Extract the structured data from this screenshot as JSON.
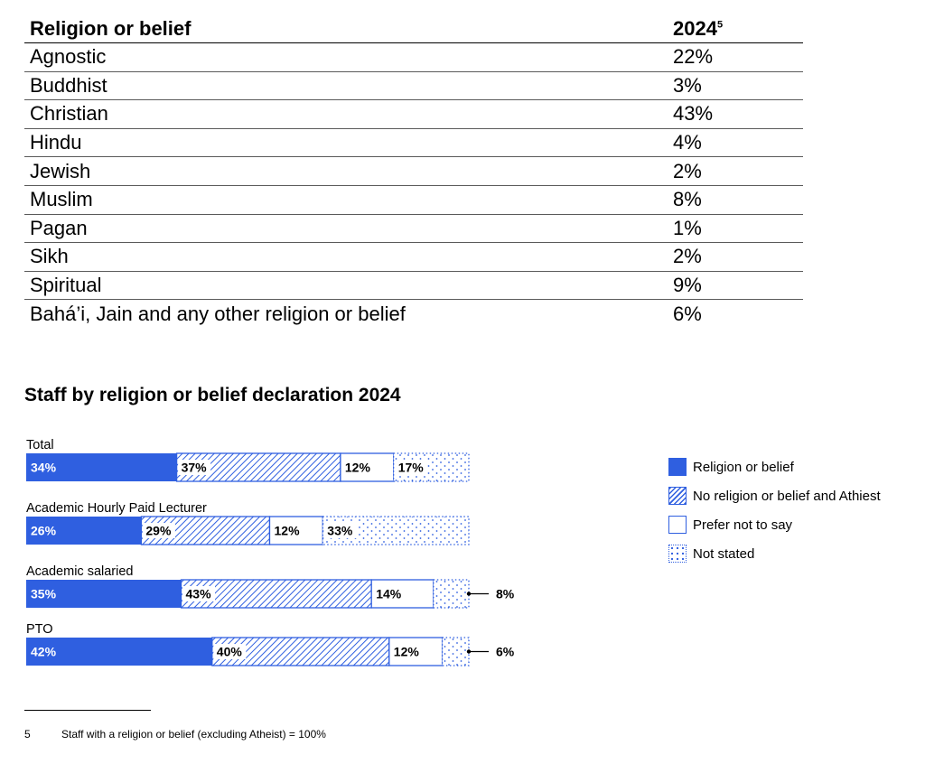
{
  "table": {
    "header": {
      "col1": "Religion or belief",
      "col2": "2024",
      "col2_sup": "5"
    },
    "rows": [
      {
        "label": "Agnostic",
        "value": "22%"
      },
      {
        "label": "Buddhist",
        "value": "3%"
      },
      {
        "label": "Christian",
        "value": "43%"
      },
      {
        "label": "Hindu",
        "value": "4%"
      },
      {
        "label": "Jewish",
        "value": "2%"
      },
      {
        "label": "Muslim",
        "value": "8%"
      },
      {
        "label": "Pagan",
        "value": "1%"
      },
      {
        "label": "Sikh",
        "value": "2%"
      },
      {
        "label": "Spiritual",
        "value": "9%"
      },
      {
        "label": "Bahá’i, Jain and any other religion or belief",
        "value": "6%"
      }
    ]
  },
  "chart_title": "Staff by religion or belief declaration 2024",
  "colors": {
    "blue": "#2f5fe0",
    "black": "#000000",
    "white": "#ffffff"
  },
  "chart_data": {
    "type": "bar",
    "orientation": "horizontal",
    "stacked": true,
    "title": "Staff by religion or belief declaration 2024",
    "unit": "%",
    "xlim": [
      0,
      100
    ],
    "categories": [
      "Total",
      "Academic Hourly Paid Lecturer",
      "Academic salaried",
      "PTO"
    ],
    "series": [
      {
        "name": "Religion or belief",
        "pattern": "solid",
        "values": [
          34,
          26,
          35,
          42
        ]
      },
      {
        "name": "No religion or belief and Athiest",
        "pattern": "hatched",
        "values": [
          37,
          29,
          43,
          40
        ]
      },
      {
        "name": "Prefer not to say",
        "pattern": "outline",
        "values": [
          12,
          12,
          14,
          12
        ]
      },
      {
        "name": "Not stated",
        "pattern": "dotted",
        "values": [
          17,
          33,
          8,
          6
        ]
      }
    ],
    "data_labels": [
      [
        "34%",
        "37%",
        "12%",
        "17%"
      ],
      [
        "26%",
        "29%",
        "12%",
        "33%"
      ],
      [
        "35%",
        "43%",
        "14%",
        "8%"
      ],
      [
        "42%",
        "40%",
        "12%",
        "6%"
      ]
    ],
    "callout_segments": [
      false,
      false,
      true,
      true
    ],
    "legend": "right"
  },
  "footnote": {
    "number": "5",
    "text": "Staff with a religion or belief (excluding Atheist) = 100%"
  }
}
